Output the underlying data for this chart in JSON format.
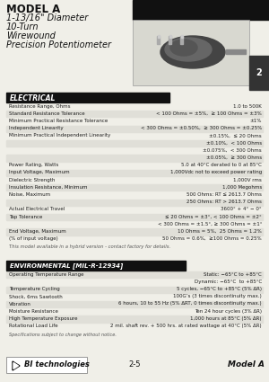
{
  "title_line1": "MODEL A",
  "title_line2": "1-13/16\" Diameter",
  "title_line3": "10-Turn",
  "title_line4": "Wirewound",
  "title_line5": "Precision Potentiometer",
  "page_number": "2",
  "section_electrical": "ELECTRICAL",
  "electrical_rows": [
    [
      "Resistance Range, Ohms",
      "1.0 to 500K"
    ],
    [
      "Standard Resistance Tolerance",
      "< 100 Ohms = ±5%,  ≥ 100 Ohms = ±3%"
    ],
    [
      "Minimum Practical Resistance Tolerance",
      "±1%"
    ],
    [
      "Independent Linearity",
      "< 300 Ohms = ±0.50%,  ≥ 300 Ohms = ±0.25%"
    ],
    [
      "Minimum Practical Independent Linearity",
      "±0.15%,  ≤ 20 Ohms"
    ],
    [
      "",
      "±0.10%,  < 100 Ohms"
    ],
    [
      "",
      "±0.075%,  < 300 Ohms"
    ],
    [
      "",
      "±0.05%,  ≥ 300 Ohms"
    ],
    [
      "Power Rating, Watts",
      "5.0 at 40°C derated to 0 at 85°C"
    ],
    [
      "Input Voltage, Maximum",
      "1,000Vdc not to exceed power rating"
    ],
    [
      "Dielectric Strength",
      "1,000V rms"
    ],
    [
      "Insulation Resistance, Minimum",
      "1,000 Megohms"
    ],
    [
      "Noise, Maximum",
      "500 Ohms: RT ≤ 2613.7 Ohms"
    ],
    [
      "",
      "250 Ohms: RT > 2613.7 Ohms"
    ],
    [
      "Actual Electrical Travel",
      "3600° + 4° − 0°"
    ],
    [
      "Tap Tolerance",
      "≤ 20 Ohms = ±3°, < 100 Ohms = ±2°"
    ],
    [
      "",
      "< 300 Ohms = ±1.5°, ≥ 300 Ohms = ±1°"
    ],
    [
      "End Voltage, Maximum",
      "10 Ohms = 5%,  25 Ohms = 1.2%"
    ],
    [
      "(% of input voltage)",
      "50 Ohms = 0.6%,  ≥100 Ohms = 0.25%"
    ],
    [
      "hybrid_note",
      "This model available in a hybrid version - contact factory for details."
    ]
  ],
  "section_environmental": "ENVIRONMENTAL [MIL-R-12934]",
  "environmental_rows": [
    [
      "Operating Temperature Range",
      "Static: −65°C to +85°C"
    ],
    [
      "",
      "Dynamic: −65°C  to +85°C"
    ],
    [
      "Temperature Cycling",
      "5 cycles, −65°C to +85°C (5% ΔR)"
    ],
    [
      "Shock, 6ms Sawtooth",
      "100G’s (3 times discontinuity max.)"
    ],
    [
      "Vibration",
      "6 hours, 10 to 55 Hz (5% ΔRT, 0 times discontinuity max.)"
    ],
    [
      "Moisture Resistance",
      "Ten 24 hour cycles (3% ΔR)"
    ],
    [
      "High Temperature Exposure",
      "1,000 hours at 85°C (5% ΔR)"
    ],
    [
      "Rotational Load Life",
      "2 mil. shaft rev. + 500 hrs. at rated wattage at 40°C (5% ΔR)"
    ]
  ],
  "spec_note": "Specifications subject to change without notice.",
  "footer_page": "2-5",
  "footer_model": "Model A",
  "bg_color": "#f0efe8",
  "section_bg": "#1a1a1a",
  "row_bg_alt": "#e0dfd8"
}
